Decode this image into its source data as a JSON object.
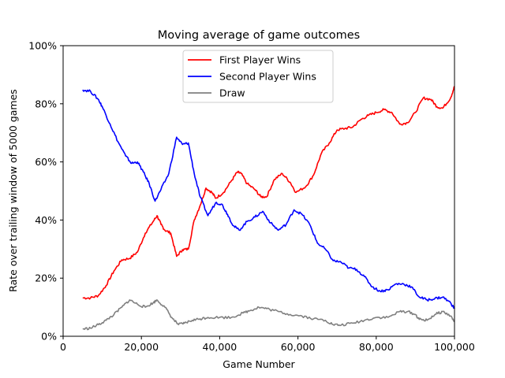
{
  "chart_data": {
    "type": "line",
    "title": "Moving average of game outcomes",
    "xlabel": "Game Number",
    "ylabel": "Rate over trailing window of 5000 games",
    "xlim": [
      0,
      100000
    ],
    "ylim": [
      0,
      100
    ],
    "x_ticks": [
      0,
      20000,
      40000,
      60000,
      80000,
      100000
    ],
    "x_tick_labels": [
      "0",
      "20,000",
      "40,000",
      "60,000",
      "80,000",
      "100,000"
    ],
    "y_ticks": [
      0,
      20,
      40,
      60,
      80,
      100
    ],
    "y_tick_labels": [
      "0%",
      "20%",
      "40%",
      "60%",
      "80%",
      "100%"
    ],
    "grid": false,
    "legend_position": "top-center",
    "series": [
      {
        "name": "First Player Wins",
        "color": "#ff0000",
        "points": [
          [
            5000,
            13.2
          ],
          [
            7000,
            13.2
          ],
          [
            9000,
            14.0
          ],
          [
            11000,
            17.5
          ],
          [
            13000,
            22.5
          ],
          [
            15000,
            26.3
          ],
          [
            17000,
            26.8
          ],
          [
            19000,
            29.0
          ],
          [
            21000,
            35.5
          ],
          [
            23000,
            39.5
          ],
          [
            24000,
            41.5
          ],
          [
            25000,
            38.5
          ],
          [
            26000,
            36.5
          ],
          [
            27500,
            35.5
          ],
          [
            29000,
            27.5
          ],
          [
            30500,
            29.8
          ],
          [
            32000,
            30.0
          ],
          [
            33500,
            40.0
          ],
          [
            35000,
            45.0
          ],
          [
            36500,
            51.0
          ],
          [
            38000,
            49.5
          ],
          [
            39000,
            47.5
          ],
          [
            41000,
            49.5
          ],
          [
            43000,
            53.5
          ],
          [
            44500,
            56.5
          ],
          [
            45500,
            56.0
          ],
          [
            47000,
            52.5
          ],
          [
            49000,
            50.5
          ],
          [
            50500,
            48.0
          ],
          [
            52000,
            48.0
          ],
          [
            54000,
            54.0
          ],
          [
            56000,
            56.0
          ],
          [
            58000,
            53.0
          ],
          [
            59500,
            49.5
          ],
          [
            62000,
            51.5
          ],
          [
            64000,
            55.5
          ],
          [
            66000,
            63.0
          ],
          [
            68000,
            66.5
          ],
          [
            70000,
            71.0
          ],
          [
            72000,
            71.5
          ],
          [
            74000,
            72.0
          ],
          [
            76000,
            74.5
          ],
          [
            78000,
            76.0
          ],
          [
            80000,
            77.0
          ],
          [
            82000,
            78.0
          ],
          [
            84000,
            77.0
          ],
          [
            86000,
            73.0
          ],
          [
            88000,
            73.5
          ],
          [
            90000,
            77.0
          ],
          [
            92000,
            82.0
          ],
          [
            94000,
            81.5
          ],
          [
            95500,
            79.0
          ],
          [
            97000,
            78.5
          ],
          [
            99000,
            82.0
          ],
          [
            100000,
            86.0
          ]
        ]
      },
      {
        "name": "Second Player Wins",
        "color": "#0000ff",
        "points": [
          [
            5000,
            84.8
          ],
          [
            7000,
            84.3
          ],
          [
            9000,
            81.5
          ],
          [
            10000,
            79.0
          ],
          [
            12000,
            73.0
          ],
          [
            14000,
            67.0
          ],
          [
            16000,
            62.0
          ],
          [
            17500,
            59.5
          ],
          [
            19000,
            60.0
          ],
          [
            20500,
            56.5
          ],
          [
            22000,
            52.5
          ],
          [
            23500,
            46.5
          ],
          [
            25000,
            50.5
          ],
          [
            27000,
            56.0
          ],
          [
            29000,
            68.5
          ],
          [
            30500,
            66.0
          ],
          [
            32000,
            66.5
          ],
          [
            33500,
            56.0
          ],
          [
            35000,
            48.0
          ],
          [
            37000,
            41.5
          ],
          [
            39000,
            46.0
          ],
          [
            40500,
            45.5
          ],
          [
            42000,
            42.0
          ],
          [
            43500,
            38.0
          ],
          [
            45000,
            36.5
          ],
          [
            47000,
            39.5
          ],
          [
            49000,
            41.0
          ],
          [
            51000,
            43.0
          ],
          [
            53000,
            39.0
          ],
          [
            55000,
            36.5
          ],
          [
            57000,
            38.5
          ],
          [
            59000,
            43.5
          ],
          [
            61000,
            42.0
          ],
          [
            63000,
            38.5
          ],
          [
            65000,
            32.0
          ],
          [
            67000,
            30.0
          ],
          [
            69000,
            26.0
          ],
          [
            71000,
            25.5
          ],
          [
            73000,
            23.5
          ],
          [
            75000,
            23.0
          ],
          [
            77000,
            20.5
          ],
          [
            79000,
            17.0
          ],
          [
            81000,
            15.5
          ],
          [
            83000,
            16.0
          ],
          [
            85000,
            18.0
          ],
          [
            87000,
            18.0
          ],
          [
            89000,
            17.0
          ],
          [
            91000,
            13.5
          ],
          [
            93000,
            12.5
          ],
          [
            95000,
            13.0
          ],
          [
            97000,
            13.5
          ],
          [
            99000,
            11.5
          ],
          [
            100000,
            9.5
          ]
        ]
      },
      {
        "name": "Draw",
        "color": "#808080",
        "points": [
          [
            5000,
            2.5
          ],
          [
            7000,
            2.8
          ],
          [
            9000,
            4.0
          ],
          [
            11000,
            5.5
          ],
          [
            13000,
            7.5
          ],
          [
            15000,
            10.0
          ],
          [
            17000,
            12.5
          ],
          [
            19000,
            11.0
          ],
          [
            21000,
            10.0
          ],
          [
            23000,
            11.5
          ],
          [
            24000,
            12.5
          ],
          [
            26000,
            10.0
          ],
          [
            28000,
            6.0
          ],
          [
            29500,
            4.0
          ],
          [
            31000,
            4.5
          ],
          [
            33000,
            5.5
          ],
          [
            35000,
            6.0
          ],
          [
            37000,
            6.5
          ],
          [
            40000,
            6.5
          ],
          [
            43000,
            6.5
          ],
          [
            46000,
            8.0
          ],
          [
            48000,
            9.0
          ],
          [
            50000,
            10.0
          ],
          [
            52000,
            9.5
          ],
          [
            55000,
            8.5
          ],
          [
            58000,
            7.5
          ],
          [
            61000,
            7.0
          ],
          [
            64000,
            6.0
          ],
          [
            67000,
            5.5
          ],
          [
            69000,
            4.0
          ],
          [
            71000,
            3.8
          ],
          [
            74000,
            4.5
          ],
          [
            77000,
            5.5
          ],
          [
            80000,
            6.5
          ],
          [
            83000,
            6.5
          ],
          [
            86000,
            8.5
          ],
          [
            88000,
            8.5
          ],
          [
            90000,
            7.5
          ],
          [
            91000,
            5.8
          ],
          [
            93000,
            5.5
          ],
          [
            95000,
            7.5
          ],
          [
            97000,
            8.5
          ],
          [
            99000,
            7.0
          ],
          [
            100000,
            5.0
          ]
        ]
      }
    ]
  }
}
